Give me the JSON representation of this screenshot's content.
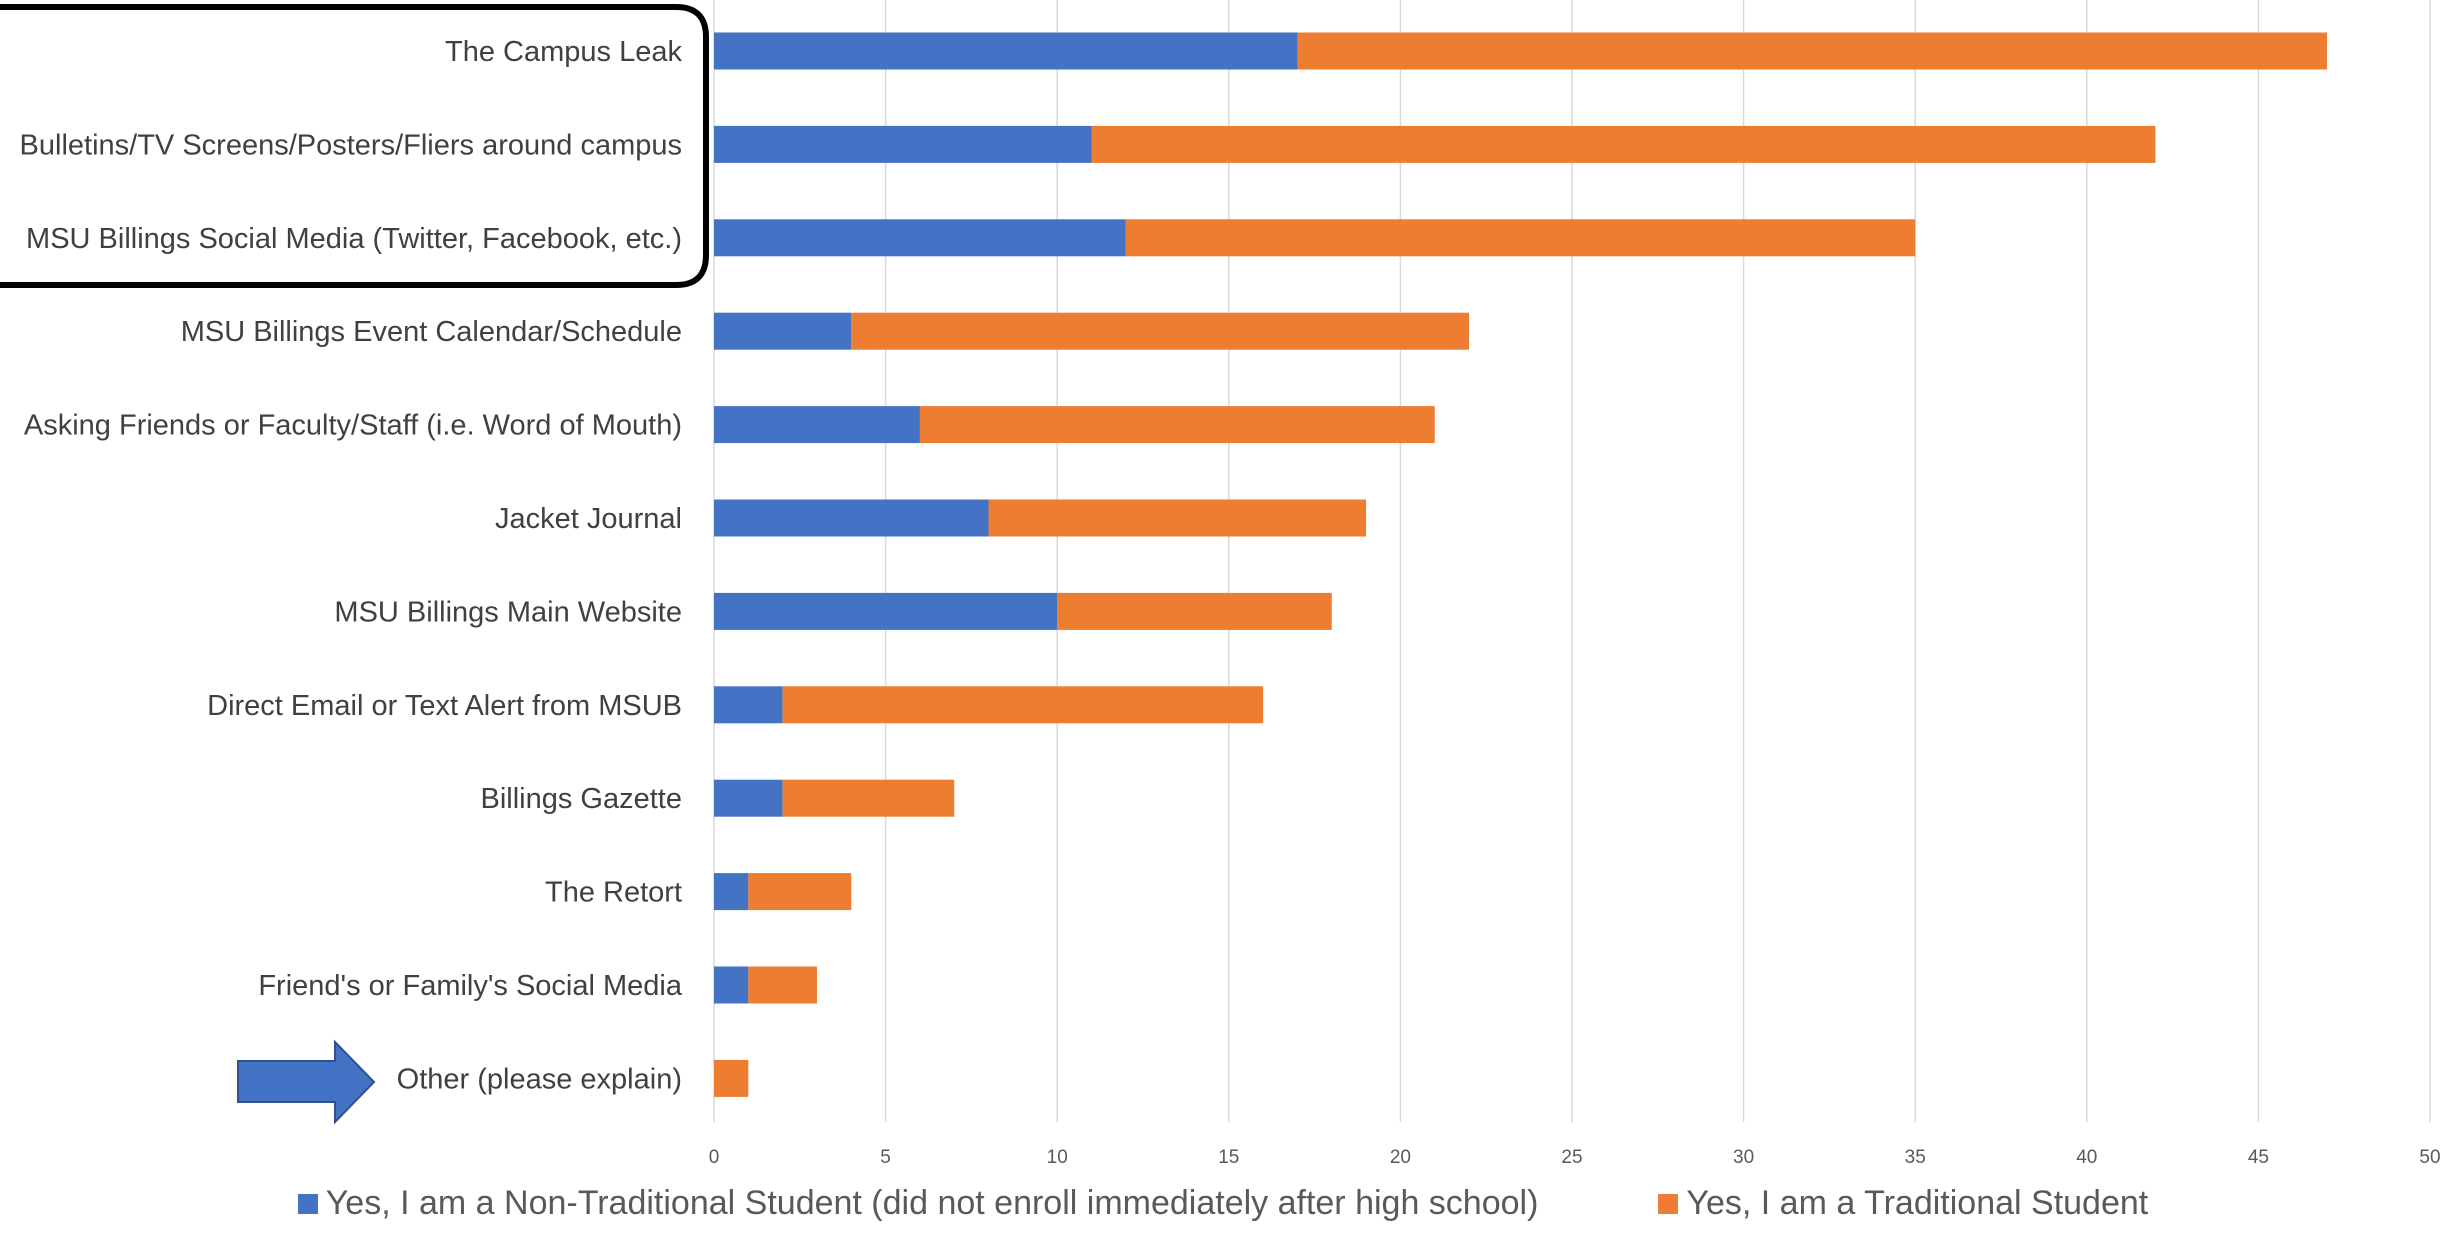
{
  "chart_data": {
    "type": "bar",
    "orientation": "horizontal",
    "stacked": true,
    "categories": [
      "The Campus Leak",
      "Bulletins/TV Screens/Posters/Fliers around campus",
      "MSU Billings Social Media (Twitter, Facebook, etc.)",
      "MSU Billings Event Calendar/Schedule",
      "Asking Friends or Faculty/Staff (i.e. Word of Mouth)",
      "Jacket Journal",
      "MSU Billings Main Website",
      "Direct Email or Text Alert from MSUB",
      "Billings Gazette",
      "The Retort",
      "Friend's or Family's Social Media",
      "Other (please explain)"
    ],
    "series": [
      {
        "name": "Yes, I am a Non-Traditional Student (did not enroll immediately after high school)",
        "color": "#4472C4",
        "values": [
          17,
          11,
          12,
          4,
          6,
          8,
          10,
          2,
          2,
          1,
          1,
          0
        ]
      },
      {
        "name": "Yes, I am a Traditional Student",
        "color": "#ED7D31",
        "values": [
          30,
          31,
          23,
          18,
          15,
          11,
          8,
          14,
          5,
          3,
          2,
          1
        ]
      }
    ],
    "xlim": [
      0,
      50
    ],
    "xticks": [
      "0",
      "5",
      "10",
      "15",
      "20",
      "25",
      "30",
      "35",
      "40",
      "45",
      "50"
    ],
    "grid": true,
    "legend_position": "bottom",
    "title": "",
    "xlabel": "",
    "ylabel": "",
    "annotations": {
      "highlight_box_categories": 3,
      "arrow_category": "Other (please explain)",
      "arrow_color": "#4472C4"
    }
  }
}
